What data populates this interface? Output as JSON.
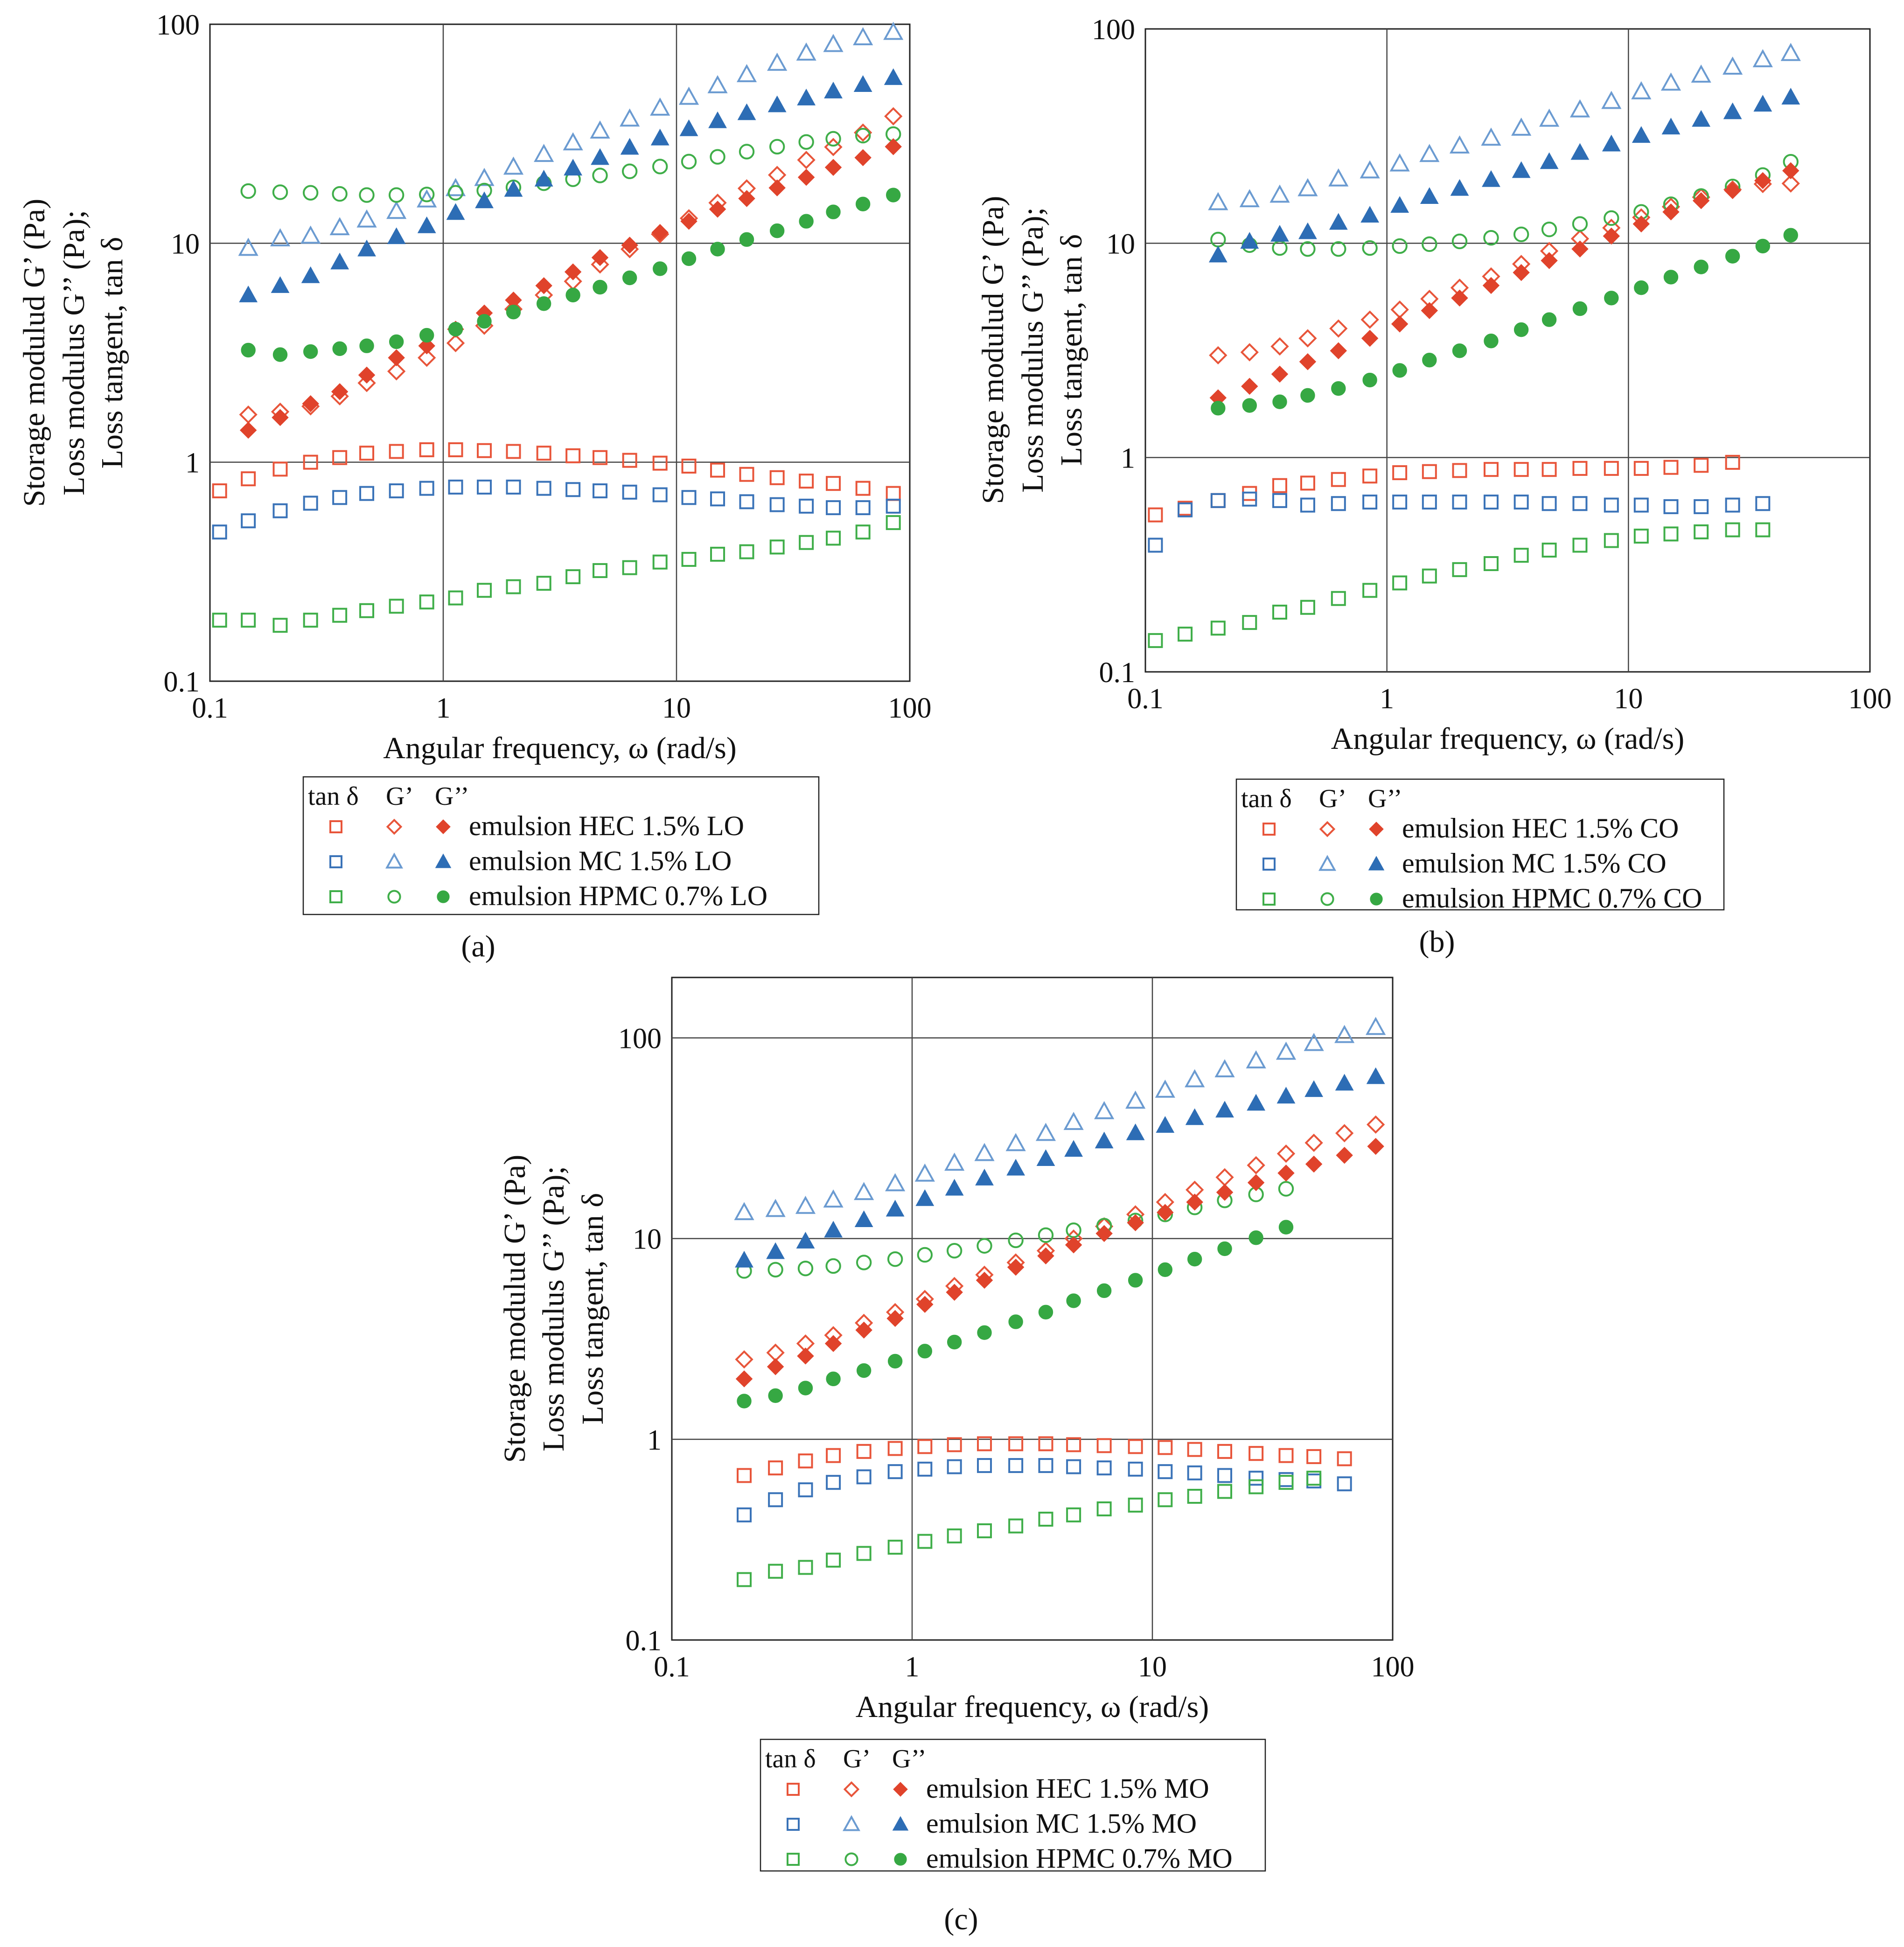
{
  "chart_data": [
    {
      "type": "scatter",
      "panel_label": "(a)",
      "xscale": "log",
      "yscale": "log",
      "xlim": [
        0.1,
        100
      ],
      "ylim": [
        0.1,
        100
      ],
      "xticks": [
        "0.1",
        "1",
        "10",
        "100"
      ],
      "yticks": [
        "0.1",
        "1",
        "10",
        "100"
      ],
      "xlabel": "Angular frequency, ω (rad/s)",
      "ylabel": [
        "Storage modulud G’ (Pa)",
        "Loss modulus G’’ (Pa);",
        "Loss tangent, tan δ"
      ],
      "legend": {
        "headers": [
          "tan δ",
          "G’",
          "G’’"
        ],
        "entries": [
          "emulsion HEC 1.5% LO",
          "emulsion MC 1.5% LO",
          "emulsion HPMC 0.7% LO"
        ]
      },
      "x": [
        0.11,
        0.146,
        0.2,
        0.27,
        0.36,
        0.47,
        0.63,
        0.85,
        1.13,
        1.5,
        2.0,
        2.7,
        3.6,
        4.7,
        6.3,
        8.5,
        11.3,
        15,
        20,
        27,
        36,
        47,
        63,
        85
      ],
      "series": [
        {
          "name": "HEC tan δ",
          "color": "#e8553a",
          "marker": "square-open",
          "values": [
            0.74,
            0.84,
            0.93,
            1.0,
            1.05,
            1.1,
            1.12,
            1.14,
            1.14,
            1.13,
            1.12,
            1.1,
            1.07,
            1.05,
            1.02,
            0.99,
            0.96,
            0.92,
            0.88,
            0.85,
            0.82,
            0.8,
            0.76,
            0.72
          ]
        },
        {
          "name": "MC tan δ",
          "color": "#3a73b8",
          "marker": "square-open",
          "values": [
            0.48,
            0.54,
            0.6,
            0.65,
            0.69,
            0.72,
            0.74,
            0.76,
            0.77,
            0.77,
            0.77,
            0.76,
            0.75,
            0.74,
            0.73,
            0.71,
            0.69,
            0.68,
            0.66,
            0.64,
            0.63,
            0.62,
            0.62,
            0.63
          ]
        },
        {
          "name": "HPMC tan δ",
          "color": "#3fae49",
          "marker": "square-open",
          "values": [
            0.19,
            0.19,
            0.18,
            0.19,
            0.2,
            0.21,
            0.22,
            0.23,
            0.24,
            0.26,
            0.27,
            0.28,
            0.3,
            0.32,
            0.33,
            0.35,
            0.36,
            0.38,
            0.39,
            0.41,
            0.43,
            0.45,
            0.48,
            0.53
          ]
        },
        {
          "name": "HEC G’",
          "color": "#e8553a",
          "marker": "diamond-open",
          "values": [
            null,
            1.65,
            1.7,
            1.8,
            2.0,
            2.3,
            2.6,
            3.0,
            3.5,
            4.2,
            5.0,
            5.8,
            6.7,
            8.0,
            9.4,
            11.0,
            13.0,
            15.3,
            17.8,
            20.5,
            24.0,
            27.5,
            32.0,
            38.0
          ]
        },
        {
          "name": "MC G’",
          "color": "#6b9bd1",
          "marker": "triangle-open",
          "values": [
            null,
            9.5,
            10.5,
            10.8,
            11.8,
            12.8,
            14.0,
            15.8,
            17.8,
            19.8,
            22.3,
            25.5,
            28.8,
            32.6,
            37.0,
            41.5,
            46.5,
            52.5,
            59.0,
            66.5,
            74.0,
            81.0,
            87.0,
            92.0
          ]
        },
        {
          "name": "HPMC G’",
          "color": "#3fae49",
          "marker": "circle-open",
          "values": [
            null,
            17.3,
            17.1,
            17.0,
            16.8,
            16.6,
            16.6,
            16.7,
            17.0,
            17.4,
            18.0,
            18.8,
            19.6,
            20.4,
            21.3,
            22.4,
            23.6,
            24.8,
            26.2,
            27.6,
            29.0,
            30.0,
            31.0,
            31.5
          ]
        },
        {
          "name": "HEC G’’",
          "color": "#e0432b",
          "marker": "diamond-filled",
          "values": [
            null,
            1.4,
            1.6,
            1.85,
            2.1,
            2.5,
            3.0,
            3.4,
            4.05,
            4.8,
            5.5,
            6.4,
            7.4,
            8.6,
            9.8,
            11.2,
            12.6,
            14.3,
            16.0,
            17.9,
            20.0,
            22.2,
            24.6,
            27.6
          ]
        },
        {
          "name": "MC G’’",
          "color": "#2d6db5",
          "marker": "triangle-filled",
          "values": [
            null,
            5.8,
            6.4,
            7.1,
            8.2,
            9.4,
            10.7,
            12.0,
            13.8,
            15.6,
            17.6,
            19.6,
            22.0,
            24.6,
            27.4,
            30.2,
            33.3,
            36.2,
            39.4,
            42.8,
            46.0,
            49.5,
            53.0,
            57.0
          ]
        },
        {
          "name": "HPMC G’’",
          "color": "#36a843",
          "marker": "circle-filled",
          "values": [
            null,
            3.25,
            3.1,
            3.2,
            3.3,
            3.4,
            3.55,
            3.8,
            4.05,
            4.4,
            4.85,
            5.3,
            5.8,
            6.3,
            6.95,
            7.65,
            8.5,
            9.4,
            10.4,
            11.4,
            12.6,
            13.9,
            15.1,
            16.6
          ]
        }
      ]
    },
    {
      "type": "scatter",
      "panel_label": "(b)",
      "xscale": "log",
      "yscale": "log",
      "xlim": [
        0.1,
        100
      ],
      "ylim": [
        0.1,
        100
      ],
      "xticks": [
        "0.1",
        "1",
        "10",
        "100"
      ],
      "yticks": [
        "0.1",
        "1",
        "10",
        "100"
      ],
      "xlabel": "Angular frequency, ω (rad/s)",
      "ylabel": [
        "Storage modulud G’ (Pa)",
        "Loss modulus G’’ (Pa);",
        "Loss tangent, tan δ"
      ],
      "legend": {
        "headers": [
          "tan δ",
          "G’",
          "G’’"
        ],
        "entries": [
          "emulsion HEC 1.5% CO",
          "emulsion MC 1.5% CO",
          "emulsion HPMC 0.7% CO"
        ]
      },
      "x": [
        0.11,
        0.146,
        0.2,
        0.27,
        0.36,
        0.47,
        0.63,
        0.85,
        1.13,
        1.5,
        2.0,
        2.7,
        3.6,
        4.7,
        6.3,
        8.5,
        11.3,
        15,
        20,
        27,
        36,
        47
      ],
      "series": [
        {
          "name": "HEC tan δ",
          "color": "#e8553a",
          "marker": "square-open",
          "values": [
            0.54,
            0.58,
            0.63,
            0.68,
            0.74,
            0.76,
            0.79,
            0.82,
            0.85,
            0.86,
            0.87,
            0.88,
            0.88,
            0.88,
            0.89,
            0.89,
            0.89,
            0.9,
            0.92,
            0.95,
            null,
            null
          ]
        },
        {
          "name": "MC tan δ",
          "color": "#3a73b8",
          "marker": "square-open",
          "values": [
            0.39,
            0.57,
            0.63,
            0.64,
            0.63,
            0.6,
            0.61,
            0.62,
            0.62,
            0.62,
            0.62,
            0.62,
            0.62,
            0.61,
            0.61,
            0.6,
            0.6,
            0.59,
            0.59,
            0.6,
            0.61,
            null
          ]
        },
        {
          "name": "HPMC tan δ",
          "color": "#3fae49",
          "marker": "square-open",
          "values": [
            0.14,
            0.15,
            0.16,
            0.17,
            0.19,
            0.2,
            0.22,
            0.24,
            0.26,
            0.28,
            0.3,
            0.32,
            0.35,
            0.37,
            0.39,
            0.41,
            0.43,
            0.44,
            0.45,
            0.46,
            0.46,
            null
          ]
        },
        {
          "name": "HEC G’",
          "color": "#e8553a",
          "marker": "diamond-open",
          "values": [
            null,
            null,
            3.0,
            3.1,
            3.3,
            3.6,
            4.0,
            4.4,
            4.9,
            5.5,
            6.2,
            7.0,
            8.0,
            9.2,
            10.5,
            11.8,
            13.2,
            14.8,
            16.4,
            17.8,
            18.9,
            19.0
          ]
        },
        {
          "name": "MC G’",
          "color": "#6b9bd1",
          "marker": "triangle-open",
          "values": [
            null,
            null,
            15.5,
            16.0,
            16.8,
            18.0,
            20.0,
            21.8,
            23.5,
            26.0,
            28.5,
            31.0,
            34.5,
            38.0,
            42.0,
            46.0,
            51.0,
            56.0,
            61.0,
            66.5,
            72.0,
            77.0
          ]
        },
        {
          "name": "HPMC G’",
          "color": "#3fae49",
          "marker": "circle-open",
          "values": [
            null,
            null,
            10.4,
            9.8,
            9.5,
            9.4,
            9.4,
            9.5,
            9.7,
            9.9,
            10.2,
            10.6,
            11.0,
            11.6,
            12.3,
            13.1,
            14.0,
            15.2,
            16.6,
            18.4,
            20.8,
            24.0
          ]
        },
        {
          "name": "HEC G’’",
          "color": "#e0432b",
          "marker": "diamond-filled",
          "values": [
            null,
            null,
            1.9,
            2.15,
            2.45,
            2.8,
            3.15,
            3.6,
            4.2,
            4.85,
            5.55,
            6.35,
            7.3,
            8.3,
            9.4,
            10.8,
            12.3,
            14.0,
            15.8,
            17.6,
            19.6,
            21.8
          ]
        },
        {
          "name": "MC G’’",
          "color": "#2d6db5",
          "marker": "triangle-filled",
          "values": [
            null,
            null,
            8.8,
            10.2,
            11.0,
            11.3,
            12.5,
            13.5,
            15.0,
            16.5,
            18.0,
            19.8,
            21.8,
            24.0,
            26.5,
            29.0,
            31.8,
            34.8,
            37.8,
            41.0,
            44.5,
            48.0
          ]
        },
        {
          "name": "HPMC G’’",
          "color": "#36a843",
          "marker": "circle-filled",
          "values": [
            null,
            null,
            1.7,
            1.75,
            1.82,
            1.95,
            2.1,
            2.3,
            2.55,
            2.85,
            3.15,
            3.5,
            3.95,
            4.4,
            4.95,
            5.55,
            6.2,
            6.95,
            7.75,
            8.7,
            9.7,
            10.9
          ]
        }
      ]
    },
    {
      "type": "scatter",
      "panel_label": "(c)",
      "xscale": "log",
      "yscale": "log",
      "xlim": [
        0.1,
        100
      ],
      "ylim": [
        0.1,
        200
      ],
      "xticks": [
        "0.1",
        "1",
        "10",
        "100"
      ],
      "yticks": [
        "0.1",
        "1",
        "10",
        "100"
      ],
      "xlabel": "Angular frequency, ω (rad/s)",
      "ylabel": [
        "Storage modulud G’ (Pa)",
        "Loss modulus G’’ (Pa);",
        "Loss tangent, tan δ"
      ],
      "legend": {
        "headers": [
          "tan δ",
          "G’",
          "G’’"
        ],
        "entries": [
          "emulsion HEC 1.5% MO",
          "emulsion MC 1.5% MO",
          "emulsion HPMC 0.7% MO"
        ]
      },
      "x": [
        0.2,
        0.27,
        0.36,
        0.47,
        0.63,
        0.85,
        1.13,
        1.5,
        2.0,
        2.7,
        3.6,
        4.7,
        6.3,
        8.5,
        11.3,
        15,
        20,
        27,
        36,
        47,
        63,
        85
      ],
      "series": [
        {
          "name": "HEC tan δ",
          "color": "#e8553a",
          "marker": "square-open",
          "values": [
            0.66,
            0.72,
            0.78,
            0.83,
            0.87,
            0.9,
            0.92,
            0.94,
            0.95,
            0.95,
            0.95,
            0.94,
            0.93,
            0.92,
            0.91,
            0.89,
            0.87,
            0.85,
            0.83,
            0.82,
            0.8,
            null
          ]
        },
        {
          "name": "MC tan δ",
          "color": "#3a73b8",
          "marker": "square-open",
          "values": [
            0.42,
            0.5,
            0.56,
            0.61,
            0.65,
            0.69,
            0.71,
            0.73,
            0.74,
            0.74,
            0.74,
            0.73,
            0.72,
            0.71,
            0.69,
            0.68,
            0.66,
            0.64,
            0.63,
            0.62,
            0.6,
            null
          ]
        },
        {
          "name": "HPMC tan δ",
          "color": "#3fae49",
          "marker": "square-open",
          "values": [
            0.2,
            0.22,
            0.23,
            0.25,
            0.27,
            0.29,
            0.31,
            0.33,
            0.35,
            0.37,
            0.4,
            0.42,
            0.45,
            0.47,
            0.5,
            0.52,
            0.55,
            0.58,
            0.61,
            0.64,
            null,
            null
          ]
        },
        {
          "name": "HEC G’",
          "color": "#e8553a",
          "marker": "diamond-open",
          "values": [
            2.5,
            2.7,
            3.0,
            3.3,
            3.8,
            4.3,
            5.0,
            5.8,
            6.6,
            7.6,
            8.7,
            10.0,
            11.5,
            13.2,
            15.2,
            17.5,
            20.2,
            23.2,
            26.5,
            30.0,
            33.5,
            37.0
          ]
        },
        {
          "name": "MC G’",
          "color": "#6b9bd1",
          "marker": "triangle-open",
          "values": [
            13.5,
            14.0,
            14.5,
            15.6,
            17.0,
            18.8,
            21.0,
            23.8,
            26.6,
            29.8,
            33.5,
            38.0,
            43.0,
            48.5,
            55.0,
            62.0,
            69.5,
            77.0,
            85.0,
            94.0,
            103.0,
            113.0
          ]
        },
        {
          "name": "HPMC G’",
          "color": "#3fae49",
          "marker": "circle-open",
          "values": [
            6.9,
            7.0,
            7.1,
            7.3,
            7.6,
            7.9,
            8.3,
            8.7,
            9.2,
            9.8,
            10.4,
            11.0,
            11.6,
            12.3,
            13.2,
            14.3,
            15.5,
            16.6,
            17.7,
            null,
            null,
            null
          ]
        },
        {
          "name": "HEC G’’",
          "color": "#e0432b",
          "marker": "diamond-filled",
          "values": [
            2.0,
            2.3,
            2.6,
            3.0,
            3.5,
            4.0,
            4.7,
            5.4,
            6.2,
            7.2,
            8.2,
            9.3,
            10.6,
            12.0,
            13.5,
            15.2,
            17.0,
            19.0,
            21.2,
            23.5,
            26.0,
            28.8
          ]
        },
        {
          "name": "MC G’’",
          "color": "#2d6db5",
          "marker": "triangle-filled",
          "values": [
            7.8,
            8.6,
            9.7,
            11.0,
            12.4,
            14.0,
            15.8,
            17.8,
            20.0,
            22.4,
            25.0,
            27.8,
            30.6,
            33.6,
            36.6,
            40.0,
            43.6,
            47.2,
            51.2,
            55.2,
            59.4,
            64.0
          ]
        },
        {
          "name": "HPMC G’’",
          "color": "#36a843",
          "marker": "circle-filled",
          "values": [
            1.55,
            1.65,
            1.8,
            2.0,
            2.2,
            2.45,
            2.75,
            3.05,
            3.4,
            3.85,
            4.3,
            4.9,
            5.5,
            6.2,
            7.0,
            7.9,
            8.9,
            10.1,
            11.4,
            null,
            null,
            null
          ]
        }
      ]
    }
  ]
}
